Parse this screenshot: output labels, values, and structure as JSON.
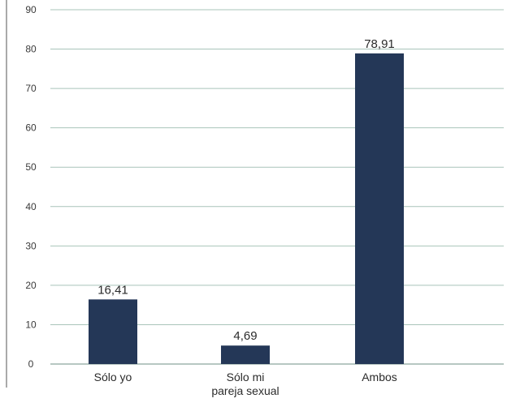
{
  "chart_data": {
    "type": "bar",
    "categories": [
      "Sólo  yo",
      "Sólo  mi\npareja sexual",
      "Ambos"
    ],
    "values": [
      16.41,
      4.69,
      78.91
    ],
    "data_labels": [
      "16,41",
      "4,69",
      "78,91"
    ],
    "y_ticks": [
      "0",
      "10",
      "20",
      "30",
      "40",
      "50",
      "60",
      "70",
      "80",
      "90"
    ],
    "ylim": [
      0,
      90
    ],
    "grid": true,
    "colors": {
      "bar": "#243757",
      "grid": "#a9c4ba",
      "axis": "#555555"
    }
  }
}
